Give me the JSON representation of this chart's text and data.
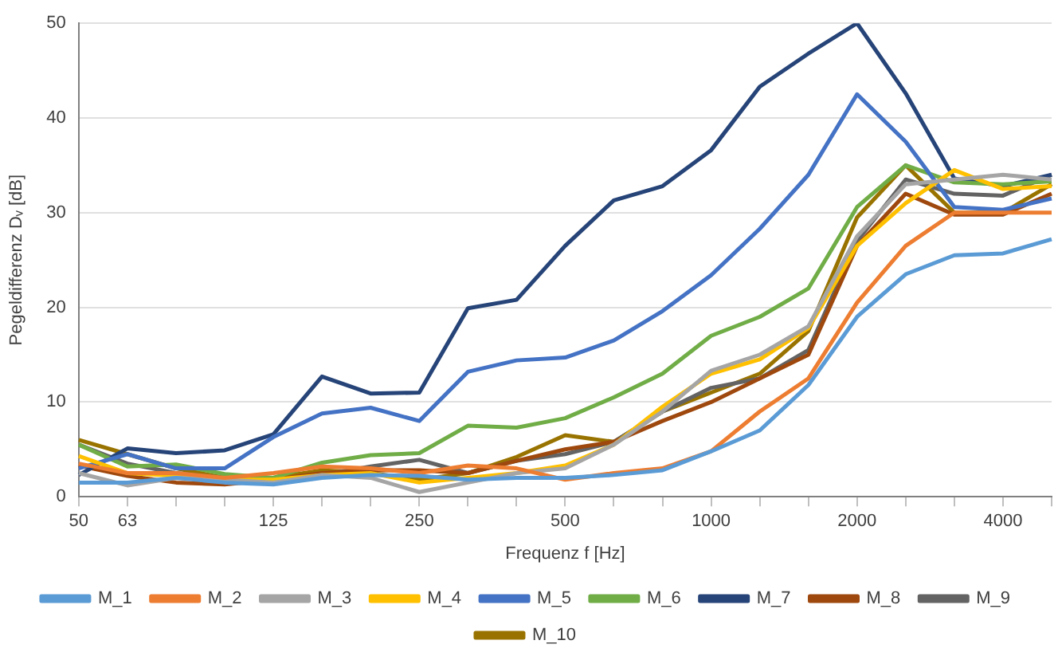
{
  "chart_data": {
    "type": "line",
    "xlabel": "Frequenz f [Hz]",
    "ylabel": "Pegeldifferenz Dᵥ [dB]",
    "categories": [
      "50",
      "63",
      null,
      null,
      "125",
      null,
      null,
      "250",
      null,
      null,
      "500",
      null,
      null,
      "1000",
      null,
      null,
      "2000",
      null,
      null,
      "4000",
      null
    ],
    "ylim": [
      0,
      50
    ],
    "yticks": [
      0,
      10,
      20,
      30,
      40,
      50
    ],
    "grid": "y",
    "legend": "bottom",
    "marker": "none",
    "line_style": "solid",
    "series": [
      {
        "name": "M_1",
        "color": "#5b9bd5",
        "values": [
          1.5,
          1.5,
          2.0,
          1.5,
          1.3,
          2.0,
          2.3,
          2.2,
          1.8,
          2.0,
          2.0,
          2.3,
          2.8,
          4.8,
          7.0,
          11.8,
          19.0,
          23.5,
          25.5,
          25.7,
          27.2
        ]
      },
      {
        "name": "M_2",
        "color": "#ed7d31",
        "values": [
          3.5,
          2.5,
          2.5,
          2.0,
          2.5,
          3.2,
          3.0,
          2.5,
          3.3,
          3.0,
          1.8,
          2.5,
          3.0,
          4.8,
          9.0,
          12.5,
          20.5,
          26.5,
          30.0,
          30.0,
          30.0
        ]
      },
      {
        "name": "M_3",
        "color": "#a5a5a5",
        "values": [
          2.5,
          1.2,
          2.0,
          1.8,
          1.5,
          2.3,
          2.0,
          0.5,
          1.5,
          2.5,
          3.0,
          5.5,
          9.0,
          13.3,
          15.0,
          18.0,
          27.5,
          33.0,
          33.5,
          34.0,
          33.5
        ]
      },
      {
        "name": "M_4",
        "color": "#ffc000",
        "values": [
          4.3,
          2.5,
          2.2,
          1.8,
          1.8,
          2.3,
          2.5,
          1.5,
          2.0,
          2.5,
          3.3,
          5.5,
          9.5,
          13.0,
          14.5,
          17.8,
          26.5,
          31.0,
          34.5,
          32.5,
          32.8
        ]
      },
      {
        "name": "M_5",
        "color": "#4472c4",
        "values": [
          3.0,
          4.5,
          3.0,
          3.0,
          6.3,
          8.8,
          9.4,
          8.0,
          13.2,
          14.4,
          14.7,
          16.5,
          19.6,
          23.4,
          28.3,
          34.0,
          42.5,
          37.5,
          30.6,
          30.3,
          31.5
        ]
      },
      {
        "name": "M_6",
        "color": "#70ad47",
        "values": [
          5.5,
          3.2,
          3.4,
          2.4,
          2.0,
          3.6,
          4.4,
          4.6,
          7.5,
          7.3,
          8.3,
          10.5,
          13.0,
          17.0,
          19.0,
          22.0,
          30.6,
          35.0,
          33.2,
          33.0,
          33.3
        ]
      },
      {
        "name": "M_7",
        "color": "#264478",
        "values": [
          2.3,
          5.1,
          4.6,
          4.9,
          6.6,
          12.7,
          10.9,
          11.0,
          19.9,
          20.8,
          26.5,
          31.3,
          32.8,
          36.6,
          43.3,
          46.8,
          50,
          42.6,
          33.6,
          32.8,
          34.0
        ]
      },
      {
        "name": "M_8",
        "color": "#9e480e",
        "values": [
          3.3,
          2.2,
          1.5,
          1.3,
          1.8,
          2.5,
          2.8,
          2.8,
          2.5,
          3.8,
          5.0,
          5.8,
          8.0,
          10.0,
          12.5,
          15.0,
          26.5,
          32.0,
          29.8,
          29.8,
          32.0
        ]
      },
      {
        "name": "M_9",
        "color": "#636363",
        "values": [
          5.5,
          3.5,
          2.5,
          2.0,
          1.8,
          2.3,
          3.2,
          3.9,
          2.5,
          3.8,
          4.5,
          5.8,
          9.0,
          11.5,
          12.5,
          15.5,
          27.0,
          33.5,
          32.0,
          31.8,
          34.0
        ]
      },
      {
        "name": "M_10",
        "color": "#997300",
        "values": [
          6.0,
          4.5,
          3.0,
          2.0,
          2.0,
          2.8,
          2.5,
          1.8,
          2.5,
          4.2,
          6.5,
          5.8,
          9.0,
          11.0,
          13.0,
          17.5,
          29.5,
          35.0,
          30.0,
          30.0,
          33.0
        ]
      }
    ]
  }
}
